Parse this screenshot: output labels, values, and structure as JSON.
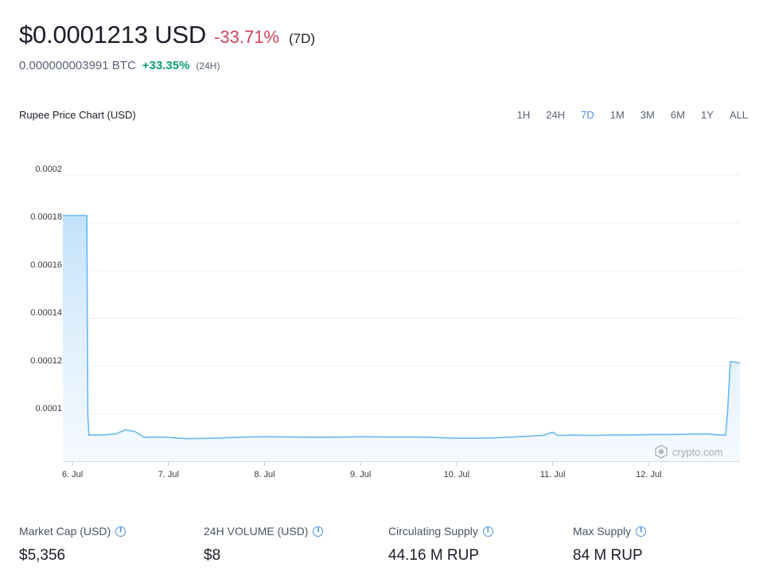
{
  "header": {
    "price": "$0.0001213 USD",
    "change": "-33.71%",
    "change_color": "#d1435b",
    "period": "(7D)",
    "btc_value": "0.000000003991 BTC",
    "btc_change": "+33.35%",
    "btc_change_color": "#119e7a",
    "btc_period": "(24H)"
  },
  "chart_title": "Rupee Price Chart (USD)",
  "ranges": [
    {
      "label": "1H",
      "active": false
    },
    {
      "label": "24H",
      "active": false
    },
    {
      "label": "7D",
      "active": true
    },
    {
      "label": "1M",
      "active": false
    },
    {
      "label": "3M",
      "active": false
    },
    {
      "label": "6M",
      "active": false
    },
    {
      "label": "1Y",
      "active": false
    },
    {
      "label": "ALL",
      "active": false
    }
  ],
  "watermark": "crypto.com",
  "chart_data": {
    "type": "area",
    "title": "Rupee Price Chart (USD)",
    "xlabel": "",
    "ylabel": "",
    "x_ticks": [
      "6. Jul",
      "7. Jul",
      "8. Jul",
      "9. Jul",
      "10. Jul",
      "11. Jul",
      "12. Jul"
    ],
    "x_range": [
      -0.1,
      6.95
    ],
    "y_ticks": [
      "0.0001",
      "0.00012",
      "0.00014",
      "0.00016",
      "0.00018",
      "0.0002"
    ],
    "y_tick_values": [
      0.0001,
      0.00012,
      0.00014,
      0.00016,
      0.00018,
      0.0002
    ],
    "ylim": [
      8.04e-05,
      0.0002
    ],
    "grid": true,
    "line_color": "#69b8f2",
    "fill_color": "#cfe8fb",
    "series": [
      {
        "x": [
          -0.1,
          0.15,
          0.155,
          0.16,
          0.17,
          0.3,
          0.45,
          0.55,
          0.65,
          0.75,
          0.85,
          1.0,
          1.2,
          1.5,
          1.8,
          2.0,
          2.3,
          2.6,
          3.0,
          3.3,
          3.6,
          4.0,
          4.3,
          4.6,
          4.9,
          5.0,
          5.05,
          5.1,
          5.2,
          5.4,
          5.6,
          5.8,
          6.0,
          6.2,
          6.4,
          6.6,
          6.75,
          6.8,
          6.82,
          6.85,
          6.9,
          6.95
        ],
        "y": [
          0.000183,
          0.000183,
          0.00014,
          0.0001,
          9.13e-05,
          9.13e-05,
          9.18e-05,
          9.35e-05,
          9.28e-05,
          9.03e-05,
          9.05e-05,
          9.03e-05,
          8.98e-05,
          9e-05,
          9.05e-05,
          9.06e-05,
          9.05e-05,
          9.04e-05,
          9.06e-05,
          9.05e-05,
          9.05e-05,
          9e-05,
          9e-05,
          9.05e-05,
          9.12e-05,
          9.25e-05,
          9.12e-05,
          9.12e-05,
          9.13e-05,
          9.12e-05,
          9.13e-05,
          9.13e-05,
          9.15e-05,
          9.15e-05,
          9.17e-05,
          9.18e-05,
          9.13e-05,
          9.13e-05,
          0.0001,
          0.000122,
          0.0001218,
          0.0001213
        ]
      }
    ]
  },
  "stats": [
    {
      "label": "Market Cap (USD)",
      "value": "$5,356"
    },
    {
      "label": "24H VOLUME (USD)",
      "value": "$8"
    },
    {
      "label": "Circulating Supply",
      "value": "44.16 M RUP"
    },
    {
      "label": "Max Supply",
      "value": "84 M RUP"
    }
  ]
}
